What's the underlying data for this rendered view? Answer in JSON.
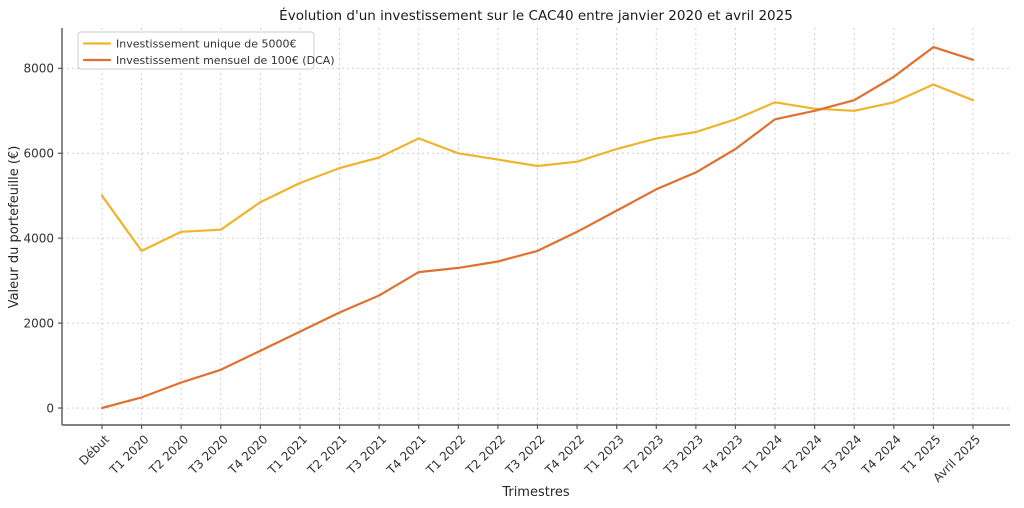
{
  "chart_data": {
    "type": "line",
    "title": "Évolution d'un investissement sur le CAC40 entre janvier 2020 et avril 2025",
    "xlabel": "Trimestres",
    "ylabel": "Valeur du portefeuille (€)",
    "categories": [
      "Début",
      "T1 2020",
      "T2 2020",
      "T3 2020",
      "T4 2020",
      "T1 2021",
      "T2 2021",
      "T3 2021",
      "T4 2021",
      "T1 2022",
      "T2 2022",
      "T3 2022",
      "T4 2022",
      "T1 2023",
      "T2 2023",
      "T3 2023",
      "T4 2023",
      "T1 2024",
      "T2 2024",
      "T3 2024",
      "T4 2024",
      "T1 2025",
      "Avril 2025"
    ],
    "series": [
      {
        "name": "Investissement unique de 5000€",
        "color": "#F0B42C",
        "values": [
          5000,
          3700,
          4150,
          4200,
          4850,
          5300,
          5650,
          5900,
          6350,
          6000,
          5850,
          5700,
          5800,
          6100,
          6350,
          6500,
          6800,
          7200,
          7050,
          7000,
          7200,
          7620,
          7250
        ]
      },
      {
        "name": "Investissement mensuel de 100€ (DCA)",
        "color": "#E0702F",
        "values": [
          0,
          250,
          600,
          900,
          1350,
          1800,
          2250,
          2650,
          3200,
          3300,
          3450,
          3700,
          4150,
          4650,
          5150,
          5550,
          6100,
          6800,
          7000,
          7250,
          7800,
          8500,
          8200
        ]
      }
    ],
    "y_ticks": [
      0,
      2000,
      4000,
      6000,
      8000
    ],
    "ylim": [
      -400,
      8950
    ],
    "grid": true,
    "grid_style": "dashed",
    "legend_position": "upper-left",
    "x_tick_rotation": 45,
    "colors": {
      "axis": "#555555",
      "grid": "#cccccc",
      "tick_text": "#333333",
      "title_text": "#1a1a1a",
      "legend_border": "#cccccc",
      "background": "#ffffff"
    }
  }
}
